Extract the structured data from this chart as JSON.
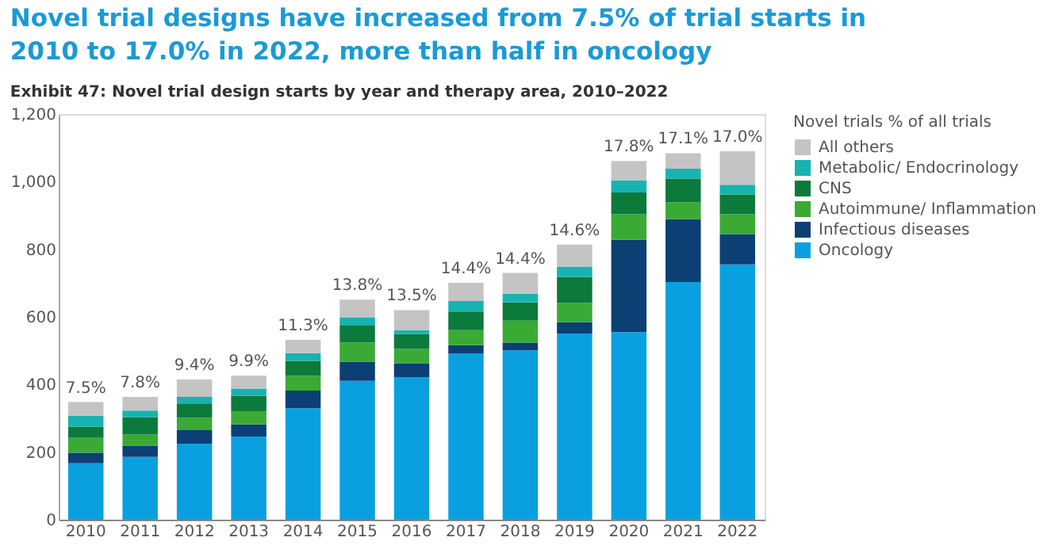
{
  "chart_data": {
    "type": "bar",
    "stacked": true,
    "title": "Novel trial designs have increased from 7.5% of trial starts in 2010 to 17.0% in 2022, more than half in oncology",
    "subtitle": "Exhibit 47: Novel trial design starts by year and therapy area, 2010–2022",
    "legend_title": "Novel trials % of all trials",
    "categories": [
      "2010",
      "2011",
      "2012",
      "2013",
      "2014",
      "2015",
      "2016",
      "2017",
      "2018",
      "2019",
      "2020",
      "2021",
      "2022"
    ],
    "series": [
      {
        "name": "Oncology",
        "color": "#0aa0e0",
        "values": [
          167,
          186,
          225,
          246,
          330,
          411,
          422,
          492,
          501,
          551,
          555,
          703,
          755
        ]
      },
      {
        "name": "Infectious diseases",
        "color": "#0c3f73",
        "values": [
          31,
          33,
          40,
          36,
          52,
          56,
          41,
          24,
          23,
          33,
          273,
          186,
          90
        ]
      },
      {
        "name": "Autoimmune/ Inflammation",
        "color": "#3aaa35",
        "values": [
          44,
          33,
          36,
          39,
          44,
          57,
          42,
          45,
          65,
          57,
          76,
          50,
          59
        ]
      },
      {
        "name": "CNS",
        "color": "#0b7a3b",
        "values": [
          33,
          51,
          43,
          46,
          44,
          50,
          44,
          53,
          54,
          77,
          64,
          70,
          58
        ]
      },
      {
        "name": "Metabolic/ Endocrinology",
        "color": "#17b3b0",
        "values": [
          32,
          20,
          19,
          21,
          23,
          25,
          12,
          33,
          25,
          31,
          35,
          29,
          29
        ]
      },
      {
        "name": "All others",
        "color": "#c4c4c4",
        "values": [
          41,
          40,
          52,
          38,
          39,
          52,
          59,
          54,
          62,
          65,
          58,
          46,
          99
        ]
      }
    ],
    "ylim": [
      0,
      1200
    ],
    "yticks": [
      0,
      200,
      400,
      600,
      800,
      {
        "value": 1000,
        "label": "1,000"
      },
      {
        "value": 1200,
        "label": "1,200"
      }
    ],
    "grid": false,
    "legend": "right",
    "annotations": [
      {
        "text": "7.5%",
        "x": "2010",
        "y": 348
      },
      {
        "text": "7.8%",
        "x": "2011",
        "y": 363
      },
      {
        "text": "9.4%",
        "x": "2012",
        "y": 415
      },
      {
        "text": "9.9%",
        "x": "2013",
        "y": 426
      },
      {
        "text": "11.3%",
        "x": "2014",
        "y": 532
      },
      {
        "text": "13.8%",
        "x": "2015",
        "y": 651
      },
      {
        "text": "13.5%",
        "x": "2016",
        "y": 620
      },
      {
        "text": "14.4%",
        "x": "2017",
        "y": 701
      },
      {
        "text": "14.4%",
        "x": "2018",
        "y": 730
      },
      {
        "text": "14.6%",
        "x": "2019",
        "y": 814
      },
      {
        "text": "17.8%",
        "x": "2020",
        "y": 1061
      },
      {
        "text": "17.1%",
        "x": "2021",
        "y": 1084
      },
      {
        "text": "17.0%",
        "x": "2022",
        "y": 1090
      }
    ]
  }
}
